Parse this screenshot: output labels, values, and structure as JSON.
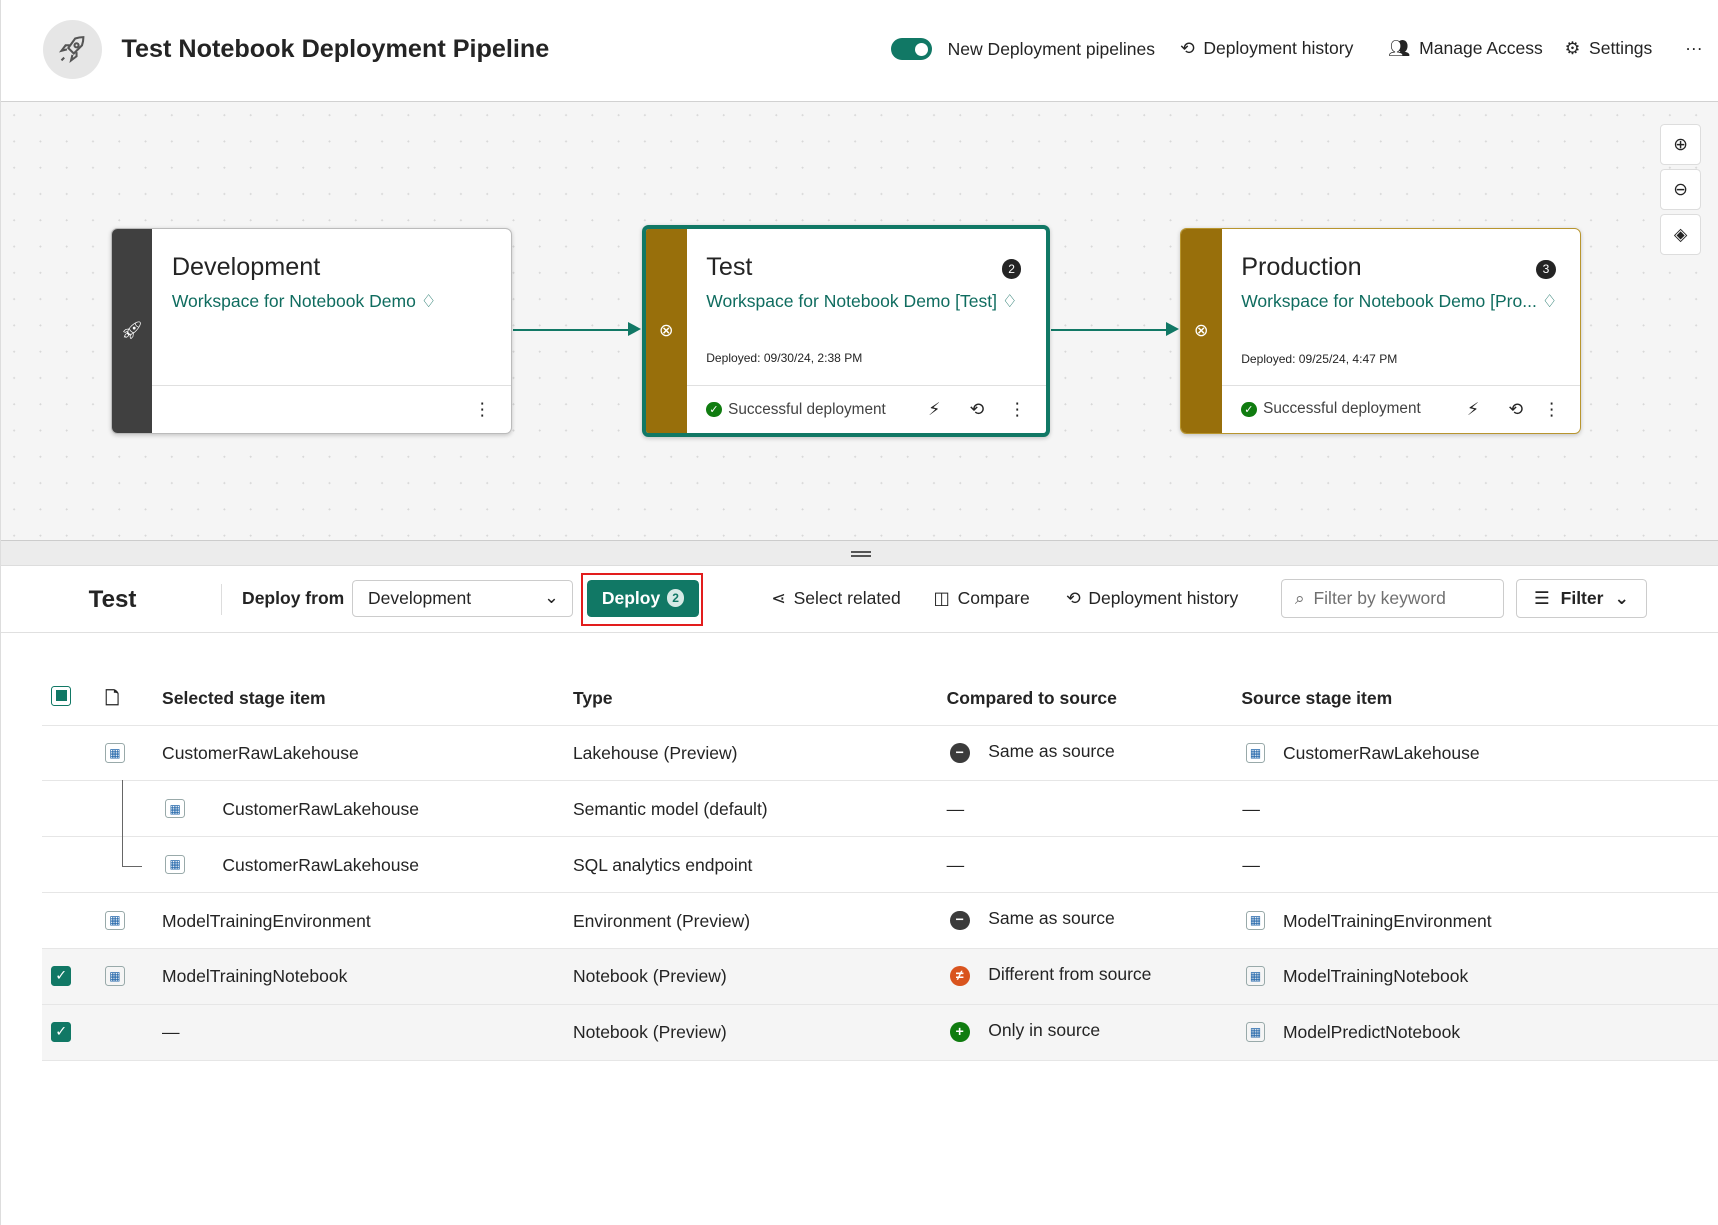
{
  "header": {
    "title": "Test Notebook Deployment Pipeline",
    "toggle_label": "New Deployment pipelines",
    "toggle_on": true,
    "actions": [
      "Deployment history",
      "Manage Access",
      "Settings"
    ],
    "more": "···"
  },
  "stages": [
    {
      "name": "Development",
      "workspace": "Workspace for Notebook Demo",
      "strip_color": "#404040",
      "selected": false
    },
    {
      "name": "Test",
      "workspace": "Workspace for Notebook Demo [Test]",
      "badge": "2",
      "deployed": "Deployed: 09/30/24, 2:38 PM",
      "status": "Successful deployment",
      "strip_color": "#986f0b",
      "selected": true
    },
    {
      "name": "Production",
      "workspace": "Workspace for Notebook Demo [Pro...",
      "badge": "3",
      "deployed": "Deployed: 09/25/24, 4:47 PM",
      "status": "Successful deployment",
      "strip_color": "#986f0b",
      "selected": false
    }
  ],
  "toolbar": {
    "stage": "Test",
    "deploy_from_label": "Deploy from",
    "deploy_from_value": "Development",
    "deploy_label": "Deploy",
    "deploy_count": "2",
    "select_related": "Select related",
    "compare": "Compare",
    "history": "Deployment history",
    "filter_placeholder": "Filter by keyword",
    "filter": "Filter"
  },
  "table": {
    "headers": [
      "Selected stage item",
      "Type",
      "Compared to source",
      "Source stage item"
    ],
    "rows": [
      {
        "checked": false,
        "name": "CustomerRawLakehouse",
        "type": "Lakehouse (Preview)",
        "compare": "Same as source",
        "compare_kind": "same",
        "source": "CustomerRawLakehouse",
        "child": false
      },
      {
        "checked": false,
        "name": "CustomerRawLakehouse",
        "type": "Semantic model (default)",
        "compare": "—",
        "compare_kind": "none",
        "source": "—",
        "child": true
      },
      {
        "checked": false,
        "name": "CustomerRawLakehouse",
        "type": "SQL analytics endpoint",
        "compare": "—",
        "compare_kind": "none",
        "source": "—",
        "child": true
      },
      {
        "checked": false,
        "name": "ModelTrainingEnvironment",
        "type": "Environment (Preview)",
        "compare": "Same as source",
        "compare_kind": "same",
        "source": "ModelTrainingEnvironment",
        "child": false
      },
      {
        "checked": true,
        "name": "ModelTrainingNotebook",
        "type": "Notebook (Preview)",
        "compare": "Different from source",
        "compare_kind": "different",
        "source": "ModelTrainingNotebook",
        "child": false
      },
      {
        "checked": true,
        "name": "—",
        "type": "Notebook (Preview)",
        "compare": "Only in source",
        "compare_kind": "only",
        "source": "ModelPredictNotebook",
        "child": false
      }
    ]
  },
  "colors": {
    "accent": "#117865",
    "stage_strip": "#986f0b",
    "different": "#d9541e",
    "only": "#107c10",
    "same": "#3b3b3b"
  }
}
